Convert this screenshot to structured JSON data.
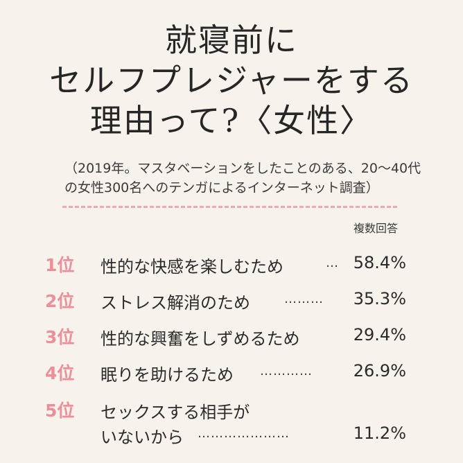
{
  "title": {
    "line1": "就寝前に",
    "line2": "セルフプレジャーをする",
    "line3": "理由って?〈女性〉"
  },
  "subtitle": {
    "line1": "（2019年。マスタベーションをしたことのある、20〜40代",
    "line2": "の女性300名へのテンガによるインターネット調査）"
  },
  "multiple_answers": "複数回答",
  "items": [
    {
      "rank": "1位",
      "label": "性的な快感を楽しむため",
      "dots": "…",
      "value": "58.4%"
    },
    {
      "rank": "2位",
      "label": "ストレス解消のため",
      "dots": "………",
      "value": "35.3%"
    },
    {
      "rank": "3位",
      "label": "性的な興奮をしずめるため",
      "dots": "",
      "value": "29.4%"
    },
    {
      "rank": "4位",
      "label": "眠りを助けるため",
      "dots": "…………",
      "value": "26.9%"
    },
    {
      "rank": "5位",
      "label_line1": "セックスする相手が",
      "label_line2": "いないから",
      "dots": "…………………",
      "value": "11.2%"
    }
  ],
  "colors": {
    "background": "#f8f2ec",
    "rank": "#ee8e99",
    "dash": "#f0a9b2"
  }
}
